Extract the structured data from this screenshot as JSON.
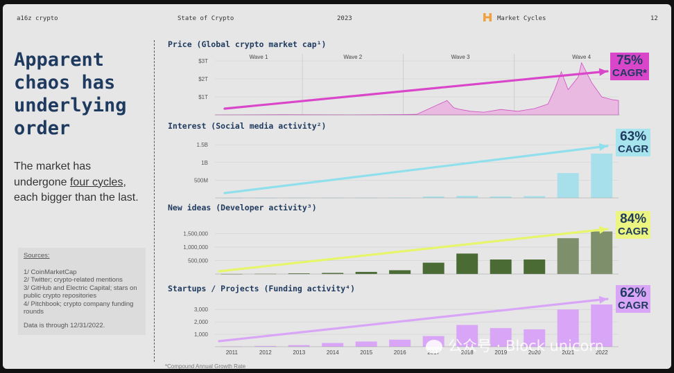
{
  "header": {
    "brand": "a16z crypto",
    "report": "State of Crypto",
    "year": "2023",
    "section": "Market Cycles",
    "page": "12"
  },
  "left": {
    "title": "Apparent chaos has underlying order",
    "desc_1": "The market has undergone",
    "desc_underline": "four cycles",
    "desc_2": ", each bigger than the last.",
    "sources_head": "Sources:",
    "sources": [
      "1/ CoinMarketCap",
      "2/ Twitter; crypto-related mentions",
      "3/ GitHub and Electric Capital; stars on public crypto repositories",
      "4/ Pitchbook; crypto company funding rounds"
    ],
    "data_through": "Data is through 12/31/2022."
  },
  "footnote": "*Compound Annual Growth Rate",
  "watermark": "公众号 · Block unicorn",
  "colors": {
    "price": "#d946c9",
    "interest": "#8fe0ec",
    "ideas_arrow": "#e6f56a",
    "ideas_bar": "#4a6b34",
    "funding": "#d9a6f7",
    "title": "#1f3a5f",
    "logo": "#f2a03d"
  },
  "chart_data": [
    {
      "type": "area",
      "title": "Price (Global crypto market cap¹)",
      "waves": [
        "Wave 1",
        "Wave 2",
        "Wave 3",
        "Wave 4"
      ],
      "yticks": [
        "$1T",
        "$2T",
        "$3T"
      ],
      "ylim": [
        0,
        3
      ],
      "x": [
        2011.0,
        2013.0,
        2015.0,
        2016.5,
        2017.0,
        2017.9,
        2018.1,
        2018.3,
        2018.6,
        2019.0,
        2019.5,
        2020.0,
        2020.5,
        2020.9,
        2021.1,
        2021.3,
        2021.5,
        2021.8,
        2021.9,
        2022.2,
        2022.5,
        2022.8,
        2023.0
      ],
      "values": [
        0,
        0.01,
        0.005,
        0.02,
        0.03,
        0.8,
        0.4,
        0.3,
        0.2,
        0.15,
        0.3,
        0.2,
        0.35,
        0.6,
        1.4,
        2.4,
        1.4,
        2.1,
        2.9,
        1.8,
        1.0,
        0.85,
        0.8
      ],
      "cagr": "75%",
      "cagr_label": "CAGR*"
    },
    {
      "type": "bar",
      "title": "Interest (Social media activity²)",
      "yticks": [
        "500M",
        "1B",
        "1.5B"
      ],
      "categories": [
        "2011",
        "2012",
        "2013",
        "2014",
        "2015",
        "2016",
        "2017",
        "2018",
        "2019",
        "2020",
        "2021",
        "2022"
      ],
      "values": [
        0,
        0,
        5,
        5,
        5,
        10,
        40,
        60,
        40,
        50,
        700,
        1250
      ],
      "ylim": [
        0,
        1600
      ],
      "cagr": "63%",
      "cagr_label": "CAGR"
    },
    {
      "type": "bar",
      "title": "New ideas (Developer activity³)",
      "yticks": [
        "500,000",
        "1,000,000",
        "1,500,000"
      ],
      "categories": [
        "2011",
        "2012",
        "2013",
        "2014",
        "2015",
        "2016",
        "2017",
        "2018",
        "2019",
        "2020",
        "2021",
        "2022"
      ],
      "values": [
        2000,
        10000,
        25000,
        40000,
        80000,
        140000,
        420000,
        760000,
        540000,
        540000,
        1330000,
        1580000
      ],
      "ylim": [
        0,
        1900000
      ],
      "cagr": "84%",
      "cagr_label": "CAGR"
    },
    {
      "type": "bar",
      "title": "Startups / Projects (Funding activity⁴)",
      "yticks": [
        "1,000",
        "2,000",
        "3,000"
      ],
      "categories": [
        "2011",
        "2012",
        "2013",
        "2014",
        "2015",
        "2016",
        "2017",
        "2018",
        "2019",
        "2020",
        "2021",
        "2022"
      ],
      "values": [
        20,
        60,
        130,
        300,
        420,
        570,
        860,
        1750,
        1500,
        1400,
        3000,
        3400
      ],
      "ylim": [
        0,
        3400
      ],
      "cagr": "62%",
      "cagr_label": "CAGR"
    }
  ]
}
